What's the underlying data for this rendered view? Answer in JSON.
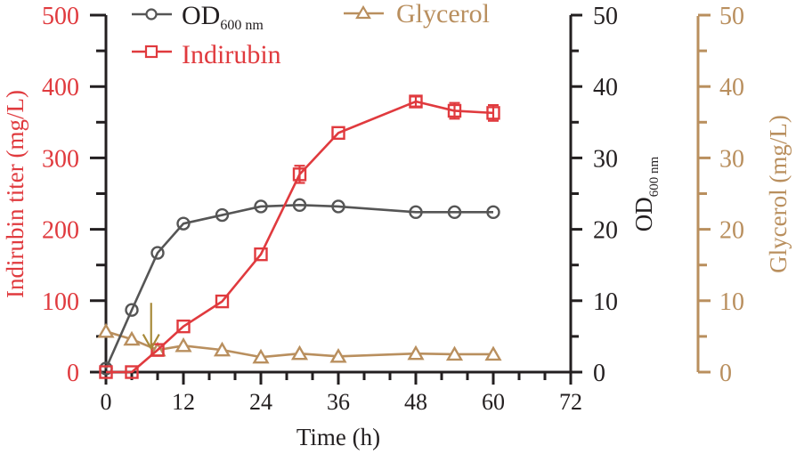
{
  "chart_data": {
    "type": "line",
    "title": "",
    "xlabel": "Time (h)",
    "xlim": [
      0,
      72
    ],
    "xticks": [
      0,
      12,
      24,
      36,
      48,
      60,
      72
    ],
    "xtick_labels": [
      "0",
      "12",
      "24",
      "36",
      "48",
      "60",
      "72"
    ],
    "x_minor_step": 4,
    "grid": false,
    "legend_position": "top",
    "axes": {
      "left": {
        "label": "Indirubin titer (mg/L)",
        "ylim": [
          0,
          500
        ],
        "ticks": [
          0,
          100,
          200,
          300,
          400,
          500
        ],
        "tick_labels": [
          "0",
          "100",
          "200",
          "300",
          "400",
          "500"
        ],
        "minor_step": 50,
        "color": "#e03a3e"
      },
      "right": {
        "label_main": "OD",
        "label_sub": "600 nm",
        "ylim": [
          0,
          50
        ],
        "ticks": [
          0,
          10,
          20,
          30,
          40,
          50
        ],
        "tick_labels": [
          "0",
          "10",
          "20",
          "30",
          "40",
          "50"
        ],
        "minor_step": 5,
        "color": "#231f20"
      },
      "right2": {
        "label": "Glycerol (mg/L)",
        "ylim": [
          0,
          50
        ],
        "ticks": [
          0,
          10,
          20,
          30,
          40,
          50
        ],
        "tick_labels": [
          "0",
          "10",
          "20",
          "30",
          "40",
          "50"
        ],
        "minor_step": 5,
        "color": "#b98f5e"
      }
    },
    "series": [
      {
        "name": "OD",
        "name_sub": "600 nm",
        "axis": "right",
        "marker": "circle",
        "color": "#555555",
        "x": [
          0,
          4,
          8,
          12,
          18,
          24,
          30,
          36,
          48,
          54,
          60
        ],
        "values": [
          0.5,
          8.7,
          16.7,
          20.8,
          22.0,
          23.2,
          23.4,
          23.2,
          22.4,
          22.4,
          22.4
        ]
      },
      {
        "name": "Indirubin",
        "axis": "left",
        "marker": "square",
        "color": "#e03a3e",
        "x": [
          0,
          4,
          8,
          12,
          18,
          24,
          30,
          36,
          48,
          54,
          60
        ],
        "values": [
          0,
          0,
          31,
          64,
          99,
          165,
          277,
          335,
          379,
          366,
          363
        ],
        "errors": [
          0,
          0,
          0,
          0,
          0,
          0,
          12,
          0,
          7,
          11,
          11
        ]
      },
      {
        "name": "Glycerol",
        "axis": "right2",
        "marker": "triangle",
        "color": "#b98f5e",
        "x": [
          0,
          4,
          8,
          12,
          18,
          24,
          30,
          36,
          48,
          54,
          60
        ],
        "values": [
          5.7,
          4.6,
          3.1,
          3.7,
          3.1,
          2.1,
          2.6,
          2.2,
          2.6,
          2.5,
          2.5
        ]
      }
    ],
    "annotations": [
      {
        "type": "arrow",
        "x": 7,
        "axis": "left",
        "y_from": 97,
        "y_to": 33,
        "color": "#a88a3a",
        "direction": "down"
      }
    ]
  }
}
